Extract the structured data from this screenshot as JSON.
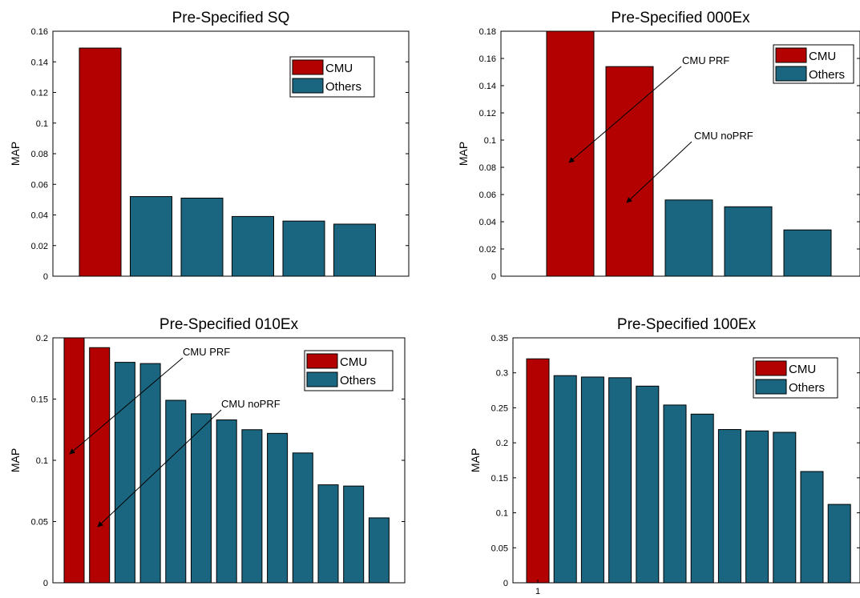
{
  "colors": {
    "cmu": "#b30000",
    "others": "#1a6680",
    "axis": "#000000",
    "bar_edge": "#000000"
  },
  "legend_entries": [
    "CMU",
    "Others"
  ],
  "chart_data": [
    {
      "type": "bar",
      "title": "Pre-Specified SQ",
      "xlabel": "",
      "ylabel": "MAP",
      "ylim": [
        0,
        0.16
      ],
      "yticks": [
        0,
        0.02,
        0.04,
        0.06,
        0.08,
        0.1,
        0.12,
        0.14,
        0.16
      ],
      "ytick_labels": [
        "0",
        "0.02",
        "0.04",
        "0.06",
        "0.08",
        "0.1",
        "0.12",
        "0.14",
        "0.16"
      ],
      "xtick_labels": [],
      "legend": [
        "CMU",
        "Others"
      ],
      "legend_position": "top-right",
      "series": [
        {
          "name": "CMU",
          "values": [
            0.149
          ]
        },
        {
          "name": "Others",
          "values": [
            0.052,
            0.051,
            0.039,
            0.036,
            0.034
          ]
        }
      ],
      "annotations": []
    },
    {
      "type": "bar",
      "title": "Pre-Specified 000Ex",
      "xlabel": "",
      "ylabel": "MAP",
      "ylim": [
        0,
        0.18
      ],
      "yticks": [
        0,
        0.02,
        0.04,
        0.06,
        0.08,
        0.1,
        0.12,
        0.14,
        0.16,
        0.18
      ],
      "ytick_labels": [
        "0",
        "0.02",
        "0.04",
        "0.06",
        "0.08",
        "0.1",
        "0.12",
        "0.14",
        "0.16",
        "0.18"
      ],
      "xtick_labels": [],
      "legend": [
        "CMU",
        "Others"
      ],
      "legend_position": "top-right",
      "series": [
        {
          "name": "CMU",
          "values": [
            0.18,
            0.154
          ]
        },
        {
          "name": "Others",
          "values": [
            0.056,
            0.051,
            0.034
          ]
        }
      ],
      "annotations": [
        {
          "text": "CMU PRF",
          "points_to_bar": 1,
          "points_to_value": 0.083
        },
        {
          "text": "CMU noPRF",
          "points_to_bar": 2,
          "points_to_value": 0.054
        }
      ]
    },
    {
      "type": "bar",
      "title": "Pre-Specified 010Ex",
      "xlabel": "",
      "ylabel": "MAP",
      "ylim": [
        0,
        0.2
      ],
      "yticks": [
        0,
        0.05,
        0.1,
        0.15,
        0.2
      ],
      "ytick_labels": [
        "0",
        "0.05",
        "0.1",
        "0.15",
        "0.2"
      ],
      "xtick_labels": [],
      "legend": [
        "CMU",
        "Others"
      ],
      "legend_position": "top-right",
      "series": [
        {
          "name": "CMU",
          "values": [
            0.2,
            0.192
          ]
        },
        {
          "name": "Others",
          "values": [
            0.18,
            0.179,
            0.149,
            0.138,
            0.133,
            0.125,
            0.122,
            0.106,
            0.08,
            0.079,
            0.053
          ]
        }
      ],
      "annotations": [
        {
          "text": "CMU PRF",
          "points_to_bar": 1,
          "points_to_value": 0.104
        },
        {
          "text": "CMU noPRF",
          "points_to_bar": 2,
          "points_to_value": 0.046
        }
      ]
    },
    {
      "type": "bar",
      "title": "Pre-Specified 100Ex",
      "xlabel": "",
      "ylabel": "MAP",
      "ylim": [
        0,
        0.35
      ],
      "yticks": [
        0,
        0.05,
        0.1,
        0.15,
        0.2,
        0.25,
        0.3,
        0.35
      ],
      "ytick_labels": [
        "0",
        "0.05",
        "0.1",
        "0.15",
        "0.2",
        "0.25",
        "0.3",
        "0.35"
      ],
      "xtick_labels": [
        "1"
      ],
      "legend": [
        "CMU",
        "Others"
      ],
      "legend_position": "top-right",
      "series": [
        {
          "name": "CMU",
          "values": [
            0.32
          ]
        },
        {
          "name": "Others",
          "values": [
            0.296,
            0.294,
            0.293,
            0.281,
            0.254,
            0.241,
            0.219,
            0.217,
            0.215,
            0.159,
            0.112
          ]
        }
      ],
      "annotations": []
    }
  ]
}
